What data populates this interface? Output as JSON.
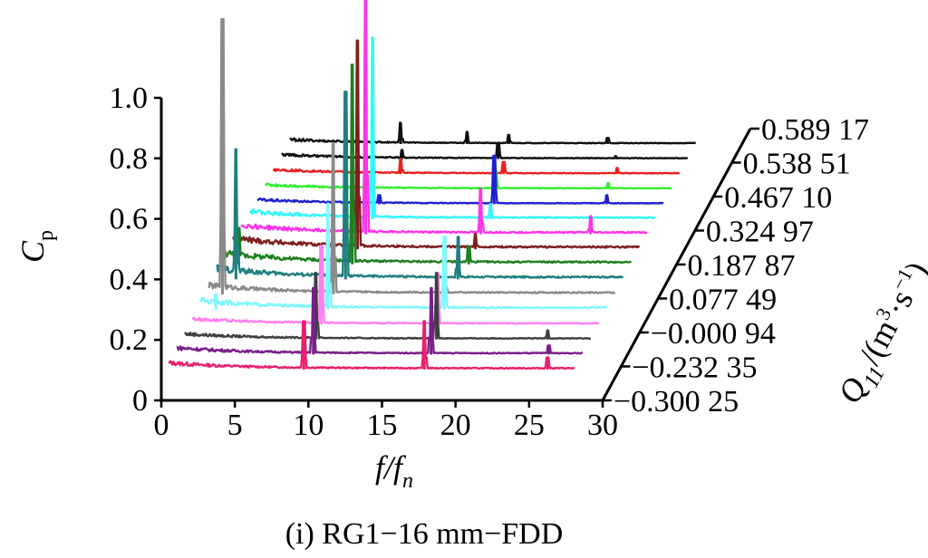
{
  "chart_data": {
    "type": "waterfall-line",
    "caption": "(i) RG1−16 mm−FDD",
    "xlabel": {
      "base": "f",
      "slash": "/",
      "base2": "f",
      "sub": "n"
    },
    "ylabel": {
      "base": "C",
      "sub": "p"
    },
    "zlabel": {
      "base": "Q",
      "sub": "11",
      "slash": "/(m",
      "sup1": "3",
      "dot": "·s",
      "sup2": "−1",
      "close": ")"
    },
    "x_ticks": [
      "0",
      "5",
      "10",
      "15",
      "20",
      "25",
      "30"
    ],
    "x_tick_values": [
      0,
      5,
      10,
      15,
      20,
      25,
      30
    ],
    "y_ticks": [
      "0",
      "0.2",
      "0.4",
      "0.6",
      "0.8",
      "1.0"
    ],
    "y_tick_values": [
      0,
      0.2,
      0.4,
      0.6,
      0.8,
      1.0
    ],
    "xlim": [
      0,
      30
    ],
    "ylim": [
      0,
      1.0
    ],
    "q_labels": [
      "−0.300 25",
      "−0.232 35",
      "−0.000 94",
      "0.077 49",
      "0.187 87",
      "0.324 97",
      "0.467 10",
      "0.538 51",
      "0.589 17"
    ],
    "series": [
      {
        "color": "#e8206e",
        "noise": 0.03,
        "peaks": [
          [
            10.0,
            0.16
          ],
          [
            18.9,
            0.16
          ],
          [
            28.0,
            0.04
          ]
        ]
      },
      {
        "color": "#7a1f8a",
        "noise": 0.03,
        "peaks": [
          [
            10.1,
            0.22
          ],
          [
            18.8,
            0.22
          ],
          [
            27.5,
            0.03
          ]
        ]
      },
      {
        "color": "#3f3f3f",
        "noise": 0.025,
        "peaks": [
          [
            9.7,
            0.22
          ],
          [
            18.6,
            0.22
          ],
          [
            26.8,
            0.03
          ]
        ]
      },
      {
        "color": "#ff7ff0",
        "noise": 0.025,
        "peaks": [
          [
            9.5,
            0.26
          ],
          [
            18.1,
            0.17
          ]
        ]
      },
      {
        "color": "#7ff7ff",
        "noise": 0.04,
        "peaks": [
          [
            1.1,
            0.05
          ],
          [
            9.4,
            0.35
          ],
          [
            18.0,
            0.24
          ]
        ]
      },
      {
        "color": "#8a8a8a",
        "noise": 0.04,
        "peaks": [
          [
            1.0,
            0.91
          ],
          [
            9.2,
            0.5
          ],
          [
            17.4,
            0.1
          ]
        ]
      },
      {
        "color": "#1f7f7f",
        "noise": 0.05,
        "peaks": [
          [
            1.4,
            0.43
          ],
          [
            9.5,
            0.62
          ],
          [
            17.8,
            0.14
          ]
        ]
      },
      {
        "color": "#1f7f1f",
        "noise": 0.05,
        "peaks": [
          [
            1.0,
            0.12
          ],
          [
            9.4,
            0.66
          ],
          [
            18.0,
            0.06
          ]
        ]
      },
      {
        "color": "#7f1f1f",
        "noise": 0.05,
        "peaks": [
          [
            0.2,
            0.07
          ],
          [
            9.2,
            0.69
          ],
          [
            17.9,
            0.05
          ]
        ]
      },
      {
        "color": "#ff33e8",
        "noise": 0.04,
        "peaks": [
          [
            9.2,
            0.78
          ],
          [
            17.7,
            0.15
          ],
          [
            25.8,
            0.06
          ]
        ]
      },
      {
        "color": "#33f7ff",
        "noise": 0.035,
        "peaks": [
          [
            9.1,
            0.6
          ],
          [
            17.8,
            0.05
          ]
        ]
      },
      {
        "color": "#2020d0",
        "noise": 0.02,
        "peaks": [
          [
            9.0,
            0.03
          ],
          [
            17.5,
            0.16
          ],
          [
            25.8,
            0.03
          ]
        ]
      },
      {
        "color": "#33ee33",
        "noise": 0.02,
        "peaks": [
          [
            17.0,
            0.06
          ],
          [
            25.3,
            0.02
          ]
        ]
      },
      {
        "color": "#e82020",
        "noise": 0.02,
        "peaks": [
          [
            9.4,
            0.05
          ],
          [
            17.0,
            0.04
          ],
          [
            25.4,
            0.02
          ]
        ]
      },
      {
        "color": "#101010",
        "noise": 0.02,
        "peaks": [
          [
            8.9,
            0.03
          ],
          [
            16.0,
            0.05
          ],
          [
            24.7,
            0.01
          ]
        ]
      },
      {
        "color": "#101010",
        "noise": 0.02,
        "peaks": [
          [
            8.2,
            0.07
          ],
          [
            13.1,
            0.04
          ],
          [
            16.2,
            0.03
          ],
          [
            23.5,
            0.02
          ]
        ]
      }
    ]
  }
}
